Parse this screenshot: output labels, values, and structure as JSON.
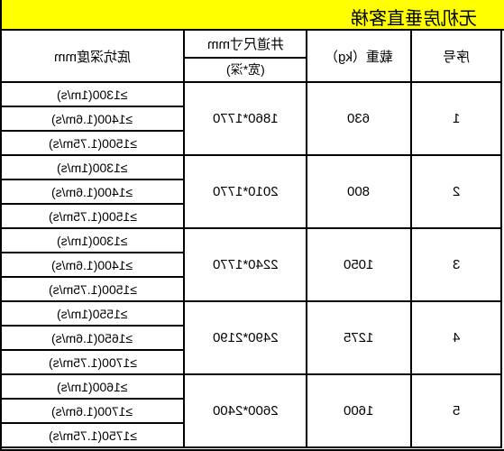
{
  "title": "无机房垂直客梯",
  "headers": {
    "depth": "底坑深度mm",
    "size_main": "井道尺寸mm",
    "size_sub": "(宽*深)",
    "weight": "载重（kg）",
    "num": "序号"
  },
  "rows": [
    {
      "num": "1",
      "weight": "630",
      "size": "1860*1770",
      "depths": [
        "≥1300(1m/s)",
        "≥1400(1.6m/s)",
        "≥1500(1.75m/s)"
      ]
    },
    {
      "num": "2",
      "weight": "800",
      "size": "2010*1770",
      "depths": [
        "≥1300(1m/s)",
        "≥1400(1.6m/s)",
        "≥1500(1.75m/s)"
      ]
    },
    {
      "num": "3",
      "weight": "1050",
      "size": "2240*1770",
      "depths": [
        "≥1300(1m/s)",
        "≥1400(1.6m/s)",
        "≥1500(1.75m/s)"
      ]
    },
    {
      "num": "4",
      "weight": "1275",
      "size": "2490*2190",
      "depths": [
        "≥1550(1m/s)",
        "≥1650(1.6m/s)",
        "≥1700(1.75m/s)"
      ]
    },
    {
      "num": "5",
      "weight": "1600",
      "size": "2600*2400",
      "depths": [
        "≥1600(1m/s)",
        "≥1700(1.6m/s)",
        "≥1750(1.75m/s)"
      ]
    }
  ]
}
